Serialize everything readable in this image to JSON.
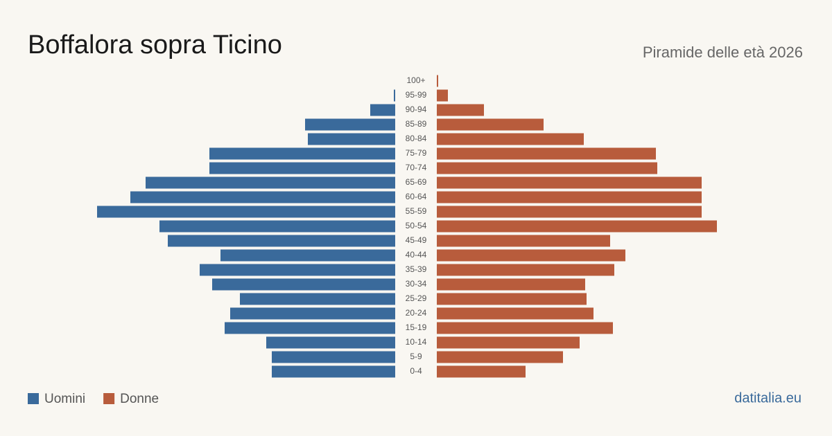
{
  "chart_data": {
    "type": "pyramid",
    "title": "Boffalora sopra Ticino",
    "subtitle": "Piramide delle età 2026",
    "source": "datitalia.eu",
    "categories": [
      "100+",
      "95-99",
      "90-94",
      "85-89",
      "80-84",
      "75-79",
      "70-74",
      "65-69",
      "60-64",
      "55-59",
      "50-54",
      "45-49",
      "40-44",
      "35-39",
      "30-34",
      "25-29",
      "20-24",
      "15-19",
      "10-14",
      "5-9",
      "0-4"
    ],
    "series": [
      {
        "name": "Uomini",
        "color": "#3a6a9b",
        "values": [
          0,
          1,
          18,
          65,
          63,
          134,
          134,
          180,
          191,
          215,
          170,
          164,
          126,
          141,
          132,
          112,
          119,
          123,
          93,
          89,
          89
        ]
      },
      {
        "name": "Donne",
        "color": "#b85c3c",
        "values": [
          1,
          8,
          34,
          77,
          106,
          158,
          159,
          191,
          191,
          191,
          202,
          125,
          136,
          128,
          107,
          108,
          113,
          127,
          103,
          91,
          64
        ]
      }
    ]
  }
}
